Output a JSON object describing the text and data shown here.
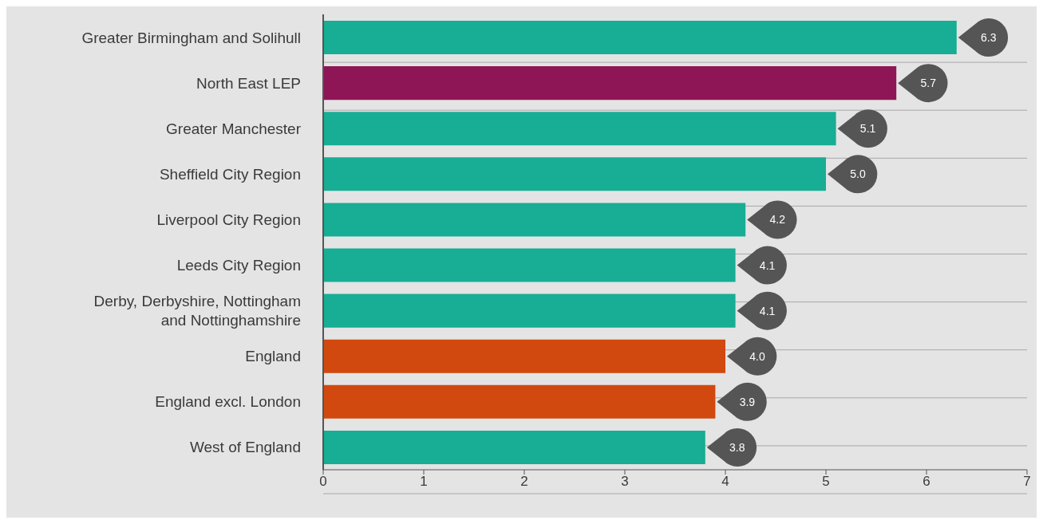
{
  "chart_data": {
    "type": "bar",
    "orientation": "horizontal",
    "categories": [
      "Greater Birmingham and Solihull",
      "North East LEP",
      "Greater Manchester",
      "Sheffield City Region",
      "Liverpool City Region",
      "Leeds City Region",
      "Derby, Derbyshire, Nottingham and Nottinghamshire",
      "England",
      "England excl. London",
      "West of England"
    ],
    "values": [
      6.3,
      5.7,
      5.1,
      5.0,
      4.2,
      4.1,
      4.1,
      4.0,
      3.9,
      3.8
    ],
    "colors": [
      "#18ad95",
      "#8e1656",
      "#18ad95",
      "#18ad95",
      "#18ad95",
      "#18ad95",
      "#18ad95",
      "#d1490e",
      "#d1490e",
      "#18ad95"
    ],
    "value_labels": [
      "6.3",
      "5.7",
      "5.1",
      "5.0",
      "4.2",
      "4.1",
      "4.1",
      "4.0",
      "3.9",
      "3.8"
    ],
    "xlim": [
      0,
      7
    ],
    "xticks": [
      0,
      1,
      2,
      3,
      4,
      5,
      6,
      7
    ],
    "grid": "y"
  }
}
